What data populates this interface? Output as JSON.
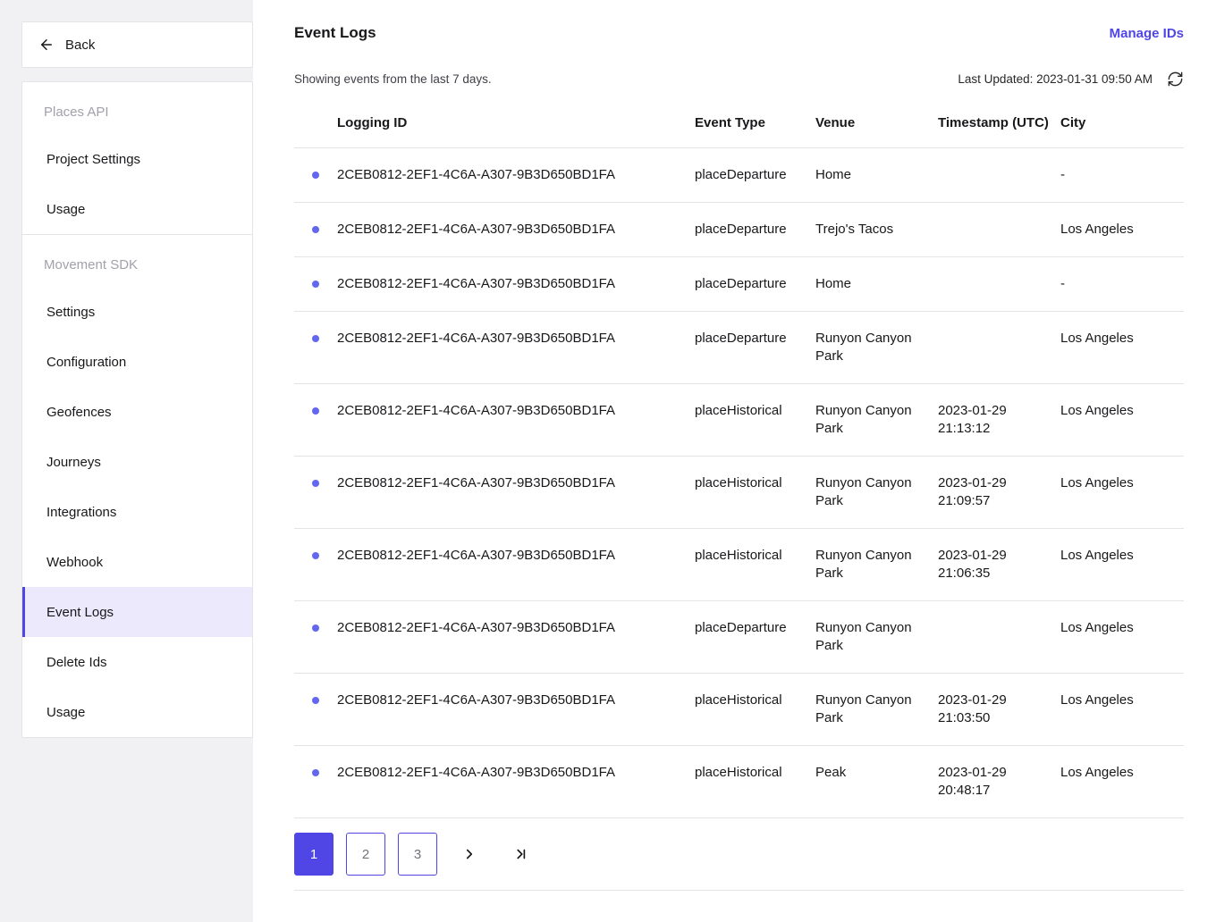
{
  "colors": {
    "accent": "#4f46e5",
    "accent_light": "#ece9fd",
    "dot": "#6366f1"
  },
  "sidebar": {
    "back": "Back",
    "sections": [
      {
        "title": "Places API",
        "items": [
          {
            "label": "Project Settings",
            "active": false
          },
          {
            "label": "Usage",
            "active": false
          }
        ]
      },
      {
        "title": "Movement SDK",
        "items": [
          {
            "label": "Settings",
            "active": false
          },
          {
            "label": "Configuration",
            "active": false
          },
          {
            "label": "Geofences",
            "active": false
          },
          {
            "label": "Journeys",
            "active": false
          },
          {
            "label": "Integrations",
            "active": false
          },
          {
            "label": "Webhook",
            "active": false
          },
          {
            "label": "Event Logs",
            "active": true
          },
          {
            "label": "Delete Ids",
            "active": false
          },
          {
            "label": "Usage",
            "active": false
          }
        ]
      }
    ]
  },
  "header": {
    "title": "Event Logs",
    "manage_ids": "Manage IDs"
  },
  "statusbar": {
    "showing": "Showing events from the last 7 days.",
    "last_updated": "Last Updated: 2023-01-31 09:50 AM"
  },
  "table": {
    "columns": {
      "logging_id": "Logging ID",
      "event_type": "Event Type",
      "venue": "Venue",
      "timestamp": "Timestamp (UTC)",
      "city": "City"
    },
    "rows": [
      {
        "logging_id": "2CEB0812-2EF1-4C6A-A307-9B3D650BD1FA",
        "event_type": "placeDeparture",
        "venue": "Home",
        "timestamp": "",
        "city": "-"
      },
      {
        "logging_id": "2CEB0812-2EF1-4C6A-A307-9B3D650BD1FA",
        "event_type": "placeDeparture",
        "venue": "Trejo's Tacos",
        "timestamp": "",
        "city": "Los Angeles"
      },
      {
        "logging_id": "2CEB0812-2EF1-4C6A-A307-9B3D650BD1FA",
        "event_type": "placeDeparture",
        "venue": "Home",
        "timestamp": "",
        "city": "-"
      },
      {
        "logging_id": "2CEB0812-2EF1-4C6A-A307-9B3D650BD1FA",
        "event_type": "placeDeparture",
        "venue": "Runyon Canyon Park",
        "timestamp": "",
        "city": "Los Angeles"
      },
      {
        "logging_id": "2CEB0812-2EF1-4C6A-A307-9B3D650BD1FA",
        "event_type": "placeHistorical",
        "venue": "Runyon Canyon Park",
        "timestamp": "2023-01-29 21:13:12",
        "city": "Los Angeles"
      },
      {
        "logging_id": "2CEB0812-2EF1-4C6A-A307-9B3D650BD1FA",
        "event_type": "placeHistorical",
        "venue": "Runyon Canyon Park",
        "timestamp": "2023-01-29 21:09:57",
        "city": "Los Angeles"
      },
      {
        "logging_id": "2CEB0812-2EF1-4C6A-A307-9B3D650BD1FA",
        "event_type": "placeHistorical",
        "venue": "Runyon Canyon Park",
        "timestamp": "2023-01-29 21:06:35",
        "city": "Los Angeles"
      },
      {
        "logging_id": "2CEB0812-2EF1-4C6A-A307-9B3D650BD1FA",
        "event_type": "placeDeparture",
        "venue": "Runyon Canyon Park",
        "timestamp": "",
        "city": "Los Angeles"
      },
      {
        "logging_id": "2CEB0812-2EF1-4C6A-A307-9B3D650BD1FA",
        "event_type": "placeHistorical",
        "venue": "Runyon Canyon Park",
        "timestamp": "2023-01-29 21:03:50",
        "city": "Los Angeles"
      },
      {
        "logging_id": "2CEB0812-2EF1-4C6A-A307-9B3D650BD1FA",
        "event_type": "placeHistorical",
        "venue": "Peak",
        "timestamp": "2023-01-29 20:48:17",
        "city": "Los Angeles"
      }
    ]
  },
  "pagination": {
    "pages": [
      "1",
      "2",
      "3"
    ],
    "active_page": "1"
  }
}
